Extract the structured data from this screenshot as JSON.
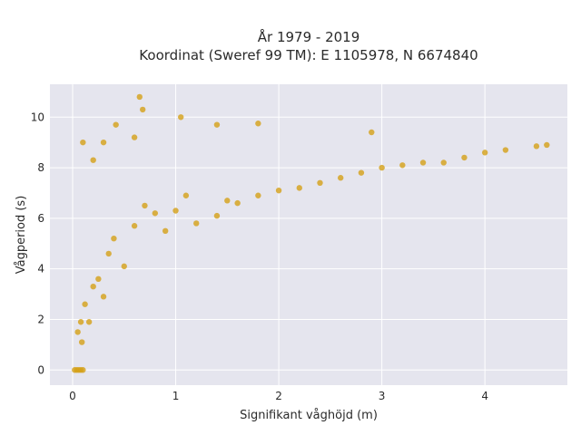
{
  "chart_data": {
    "type": "scatter",
    "title_lines": [
      "År 1979 - 2019",
      "Koordinat (Sweref 99 TM): E 1105978, N 6674840"
    ],
    "xlabel": "Signifikant våghöjd (m)",
    "ylabel": "Vågperiod (s)",
    "xlim": [
      -0.22,
      4.8
    ],
    "ylim": [
      -0.6,
      11.3
    ],
    "x_ticks": [
      "0",
      "1",
      "2",
      "3",
      "4"
    ],
    "y_ticks": [
      "0",
      "2",
      "4",
      "6",
      "8",
      "10"
    ],
    "grid": true,
    "background": "#e5e5ee",
    "marker_color": "#d4a017",
    "series": [
      {
        "points": [
          [
            0.02,
            0
          ],
          [
            0.04,
            0
          ],
          [
            0.06,
            0
          ],
          [
            0.08,
            0
          ],
          [
            0.1,
            0
          ],
          [
            0.05,
            1.5
          ],
          [
            0.08,
            1.9
          ],
          [
            0.09,
            1.1
          ],
          [
            0.12,
            2.6
          ],
          [
            0.16,
            1.9
          ],
          [
            0.2,
            3.3
          ],
          [
            0.25,
            3.6
          ],
          [
            0.3,
            2.9
          ],
          [
            0.35,
            4.6
          ],
          [
            0.4,
            5.2
          ],
          [
            0.5,
            4.1
          ],
          [
            0.6,
            5.7
          ],
          [
            0.7,
            6.5
          ],
          [
            0.8,
            6.2
          ],
          [
            0.9,
            5.5
          ],
          [
            1.0,
            6.3
          ],
          [
            1.1,
            6.9
          ],
          [
            1.2,
            5.8
          ],
          [
            1.4,
            6.1
          ],
          [
            1.5,
            6.7
          ],
          [
            1.6,
            6.6
          ],
          [
            1.8,
            6.9
          ],
          [
            2.0,
            7.1
          ],
          [
            2.2,
            7.2
          ],
          [
            2.4,
            7.4
          ],
          [
            2.6,
            7.6
          ],
          [
            2.8,
            7.8
          ],
          [
            3.0,
            8.0
          ],
          [
            3.2,
            8.1
          ],
          [
            3.4,
            8.2
          ],
          [
            3.6,
            8.2
          ],
          [
            3.8,
            8.4
          ],
          [
            4.0,
            8.6
          ],
          [
            4.2,
            8.7
          ],
          [
            4.5,
            8.85
          ],
          [
            4.6,
            8.9
          ],
          [
            0.65,
            10.8
          ],
          [
            0.68,
            10.3
          ],
          [
            0.42,
            9.7
          ],
          [
            1.05,
            10.0
          ],
          [
            1.4,
            9.7
          ],
          [
            1.8,
            9.75
          ],
          [
            2.9,
            9.4
          ],
          [
            0.3,
            9.0
          ],
          [
            0.1,
            9.0
          ],
          [
            0.2,
            8.3
          ],
          [
            0.6,
            9.2
          ]
        ]
      }
    ]
  }
}
